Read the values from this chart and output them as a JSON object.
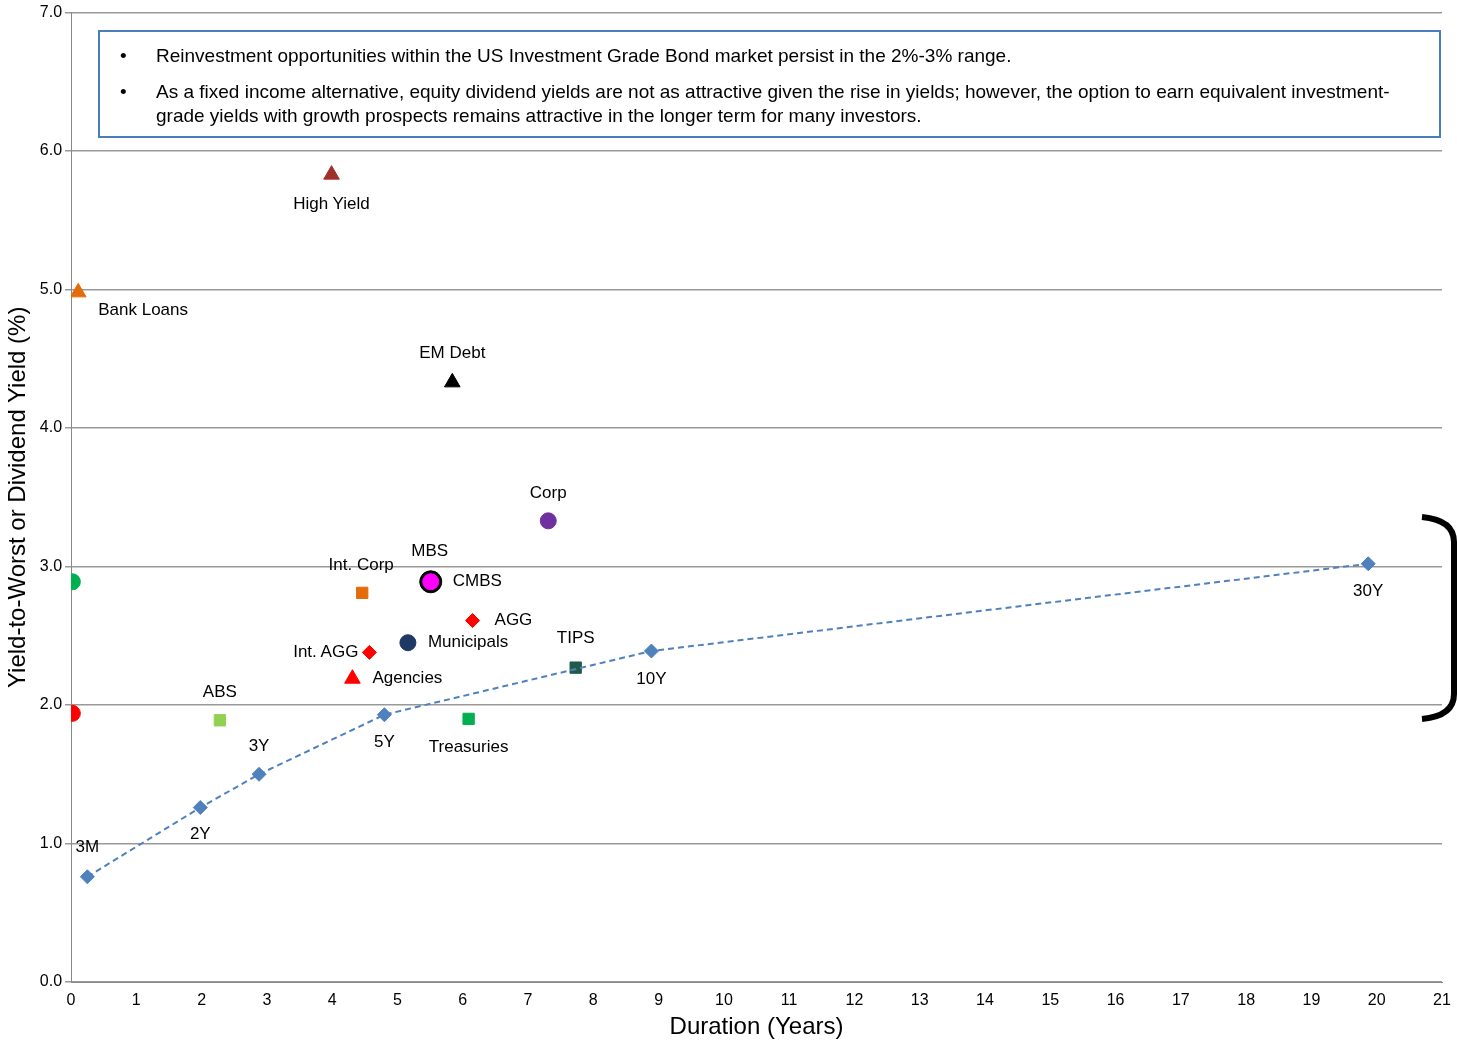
{
  "chart_data": {
    "type": "scatter",
    "xlabel": "Duration (Years)",
    "ylabel": "Yield-to-Worst or Dividend Yield (%)",
    "annotations": [
      "• Reinvestment opportunities within the US Investment Grade Bond market persist in the 2%-3% range.",
      "• As a fixed income alternative, equity dividend yields are not as attractive given the rise in yields; however, the option to earn equivalent investment-grade yields with growth prospects remains attractive in the longer term for many investors.",
      {
        "text": "3M",
        "x": 0.25,
        "y": 0.76
      },
      {
        "text": "2Y",
        "x": 1.98,
        "y": 1.26
      },
      {
        "text": "3Y",
        "x": 2.88,
        "y": 1.5
      },
      {
        "text": "5Y",
        "x": 4.8,
        "y": 1.93
      },
      {
        "text": "10Y",
        "x": 8.89,
        "y": 2.39
      },
      {
        "text": "30Y",
        "x": 19.87,
        "y": 3.02
      }
    ],
    "xlim": [
      0,
      21
    ],
    "xticks": [
      0,
      1,
      2,
      3,
      4,
      5,
      6,
      7,
      8,
      9,
      10,
      11,
      12,
      13,
      14,
      15,
      16,
      17,
      18,
      19,
      20,
      21
    ],
    "ylim": [
      0,
      7
    ],
    "yticks": [
      {
        "value": 0,
        "label": "0.0"
      },
      {
        "value": 1,
        "label": "1.0"
      },
      {
        "value": 2,
        "label": "2.0"
      },
      {
        "value": 3,
        "label": "3.0"
      },
      {
        "value": 4,
        "label": "4.0"
      },
      {
        "value": 5,
        "label": "5.0"
      },
      {
        "value": 6,
        "label": "6.0"
      },
      {
        "value": 7,
        "label": "7.0"
      }
    ],
    "grid": "y",
    "legend": false,
    "series": [
      {
        "type": "line",
        "line_style": "dashed",
        "marker": "diamond",
        "color": "#4f81bd",
        "x": [
          0.25,
          1.98,
          2.88,
          4.8,
          8.89,
          19.87
        ],
        "values": [
          0.76,
          1.26,
          1.5,
          1.93,
          2.39,
          3.02
        ]
      },
      {
        "name": "High Yield",
        "marker": "triangle",
        "color": "#a0302a",
        "x": [
          3.99
        ],
        "values": [
          5.83
        ]
      },
      {
        "name": "Bank Loans",
        "marker": "triangle",
        "color": "#e46c0a",
        "x": [
          0.11
        ],
        "values": [
          4.98
        ]
      },
      {
        "name": "EM Debt",
        "marker": "triangle",
        "color": "#000000",
        "x": [
          5.84
        ],
        "values": [
          4.33
        ]
      },
      {
        "name": "Corp",
        "marker": "circle",
        "color": "#7030a0",
        "x": [
          7.31
        ],
        "values": [
          3.33
        ]
      },
      {
        "name": "MBS",
        "marker": "circle",
        "color": "#ff00ff",
        "x": [
          5.51
        ],
        "values": [
          2.89
        ]
      },
      {
        "name": "CMBS",
        "marker": "circle",
        "color": "#000000",
        "x": [
          5.51
        ],
        "values": [
          2.89
        ]
      },
      {
        "name": "Int. Corp",
        "marker": "square",
        "color": "#e46c0a",
        "x": [
          4.46
        ],
        "values": [
          2.81
        ]
      },
      {
        "name": "AGG",
        "marker": "diamond",
        "color": "#ff0000",
        "x": [
          6.15
        ],
        "values": [
          2.61
        ]
      },
      {
        "name": "Municipals",
        "marker": "circle",
        "color": "#1f3864",
        "x": [
          5.16
        ],
        "values": [
          2.45
        ]
      },
      {
        "name": "Int. AGG",
        "marker": "diamond",
        "color": "#ff0000",
        "x": [
          4.57
        ],
        "values": [
          2.38
        ]
      },
      {
        "name": "Agencies",
        "marker": "triangle",
        "color": "#ff0000",
        "x": [
          4.31
        ],
        "values": [
          2.19
        ]
      },
      {
        "name": "TIPS",
        "marker": "square",
        "color": "#1e5b4a",
        "x": [
          7.73
        ],
        "values": [
          2.27
        ]
      },
      {
        "name": "ABS",
        "marker": "square",
        "color": "#92d050",
        "x": [
          2.28
        ],
        "values": [
          1.89
        ]
      },
      {
        "name": "Treasuries",
        "marker": "square",
        "color": "#00b050",
        "x": [
          6.09
        ],
        "values": [
          1.9
        ]
      },
      {
        "marker": "circle",
        "color": "#00b050",
        "x": [
          0.02
        ],
        "values": [
          2.89
        ]
      },
      {
        "marker": "circle",
        "color": "#ff0000",
        "x": [
          0.02
        ],
        "values": [
          1.94
        ]
      }
    ]
  }
}
